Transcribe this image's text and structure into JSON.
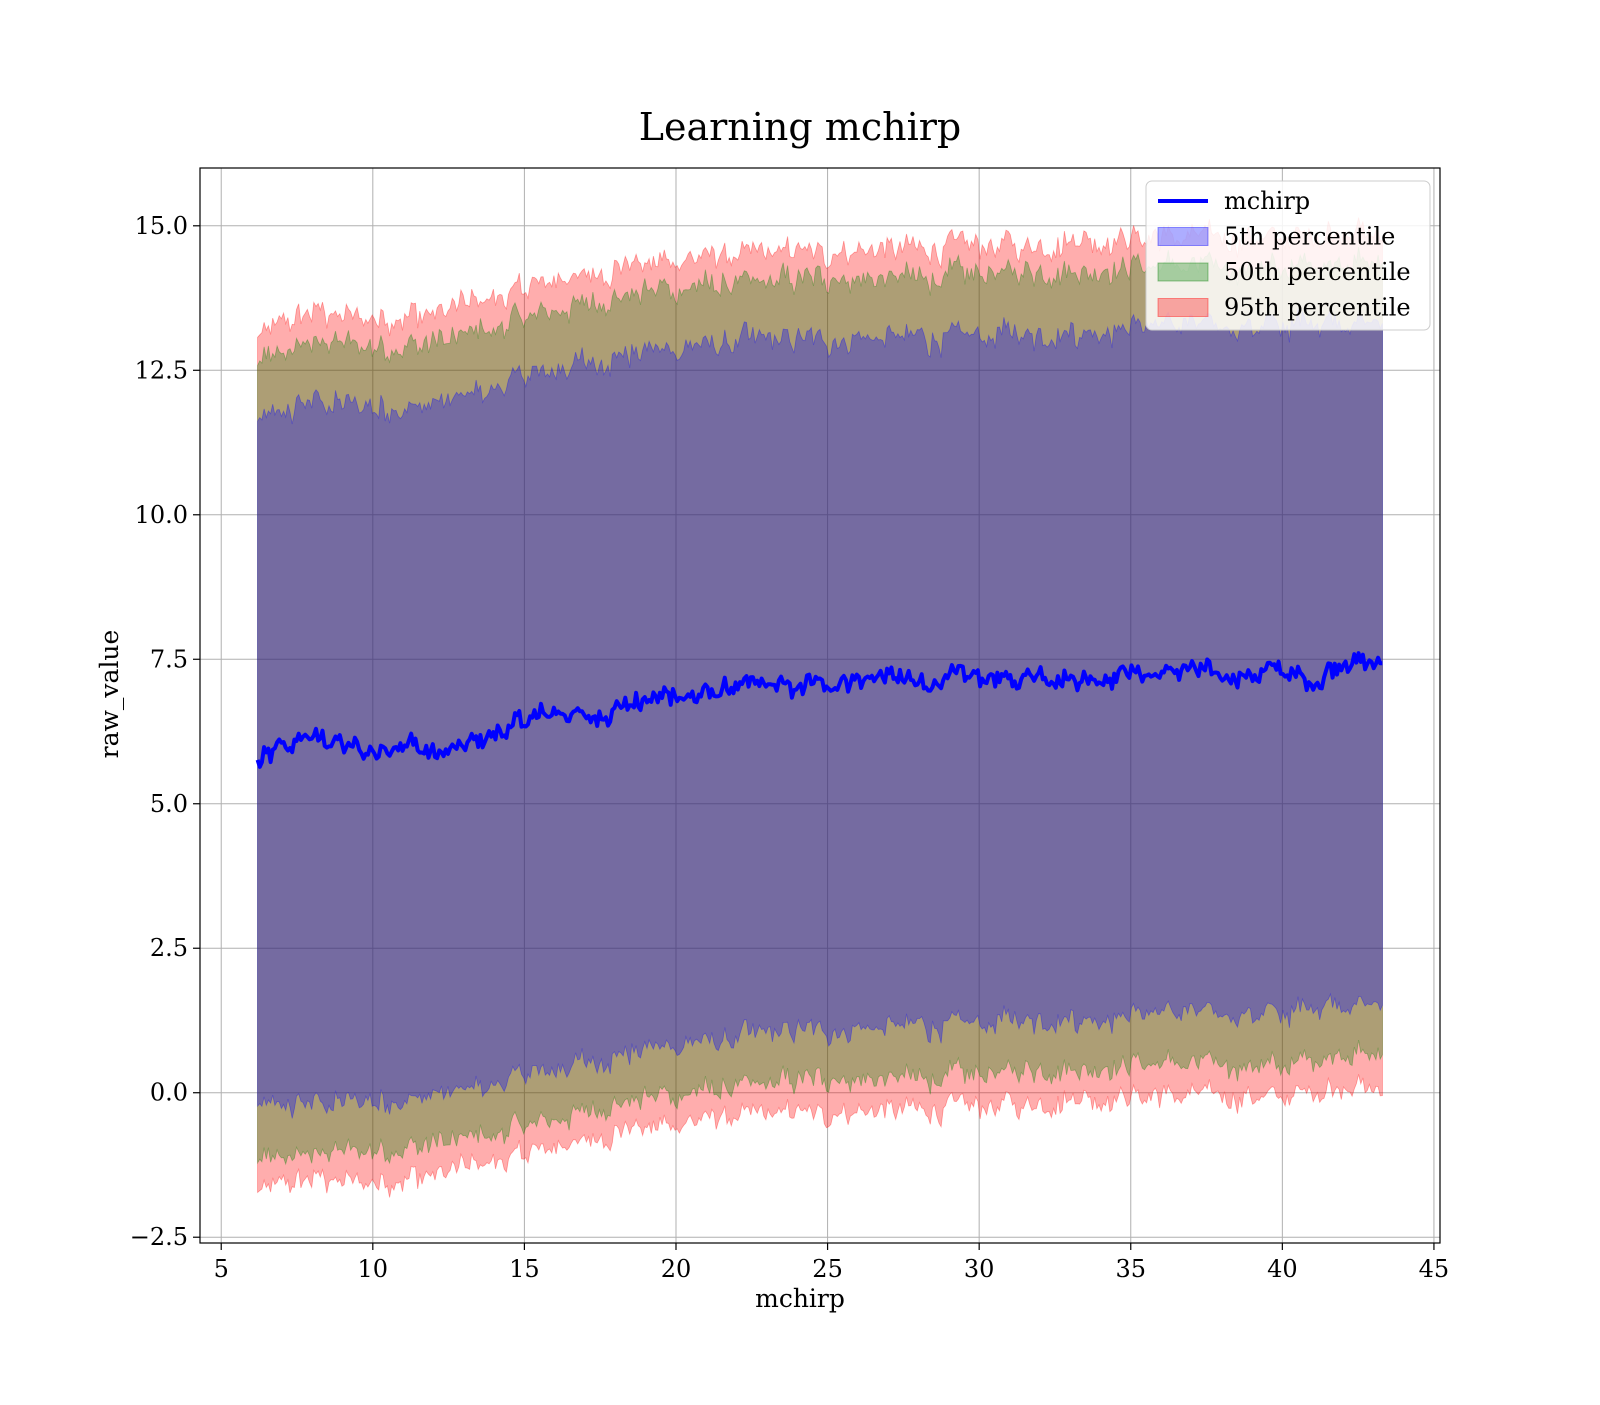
{
  "chart_data": {
    "type": "area",
    "title": "Learning mchirp",
    "xlabel": "mchirp",
    "ylabel": "raw_value",
    "xlim": [
      4.3,
      45.2
    ],
    "ylim": [
      -2.6,
      16.0
    ],
    "x_ticks": [
      "5",
      "10",
      "15",
      "20",
      "25",
      "30",
      "35",
      "40",
      "45"
    ],
    "x_tick_values": [
      5,
      10,
      15,
      20,
      25,
      30,
      35,
      40,
      45
    ],
    "y_ticks": [
      "−2.5",
      "0.0",
      "2.5",
      "5.0",
      "7.5",
      "10.0",
      "12.5",
      "15.0"
    ],
    "y_tick_values": [
      -2.5,
      0.0,
      2.5,
      5.0,
      7.5,
      10.0,
      12.5,
      15.0
    ],
    "grid": true,
    "legend_position": "top-right",
    "x_range": [
      6.2,
      43.3
    ],
    "series": [
      {
        "name": "mchirp",
        "kind": "line",
        "color": "#0000ff",
        "x": [
          6.2,
          7,
          8,
          9,
          10,
          11,
          12,
          13,
          14,
          15,
          16,
          17,
          18,
          19,
          20,
          21,
          22,
          23,
          24,
          25,
          26,
          27,
          28,
          29,
          30,
          31,
          32,
          33,
          34,
          35,
          36,
          37,
          38,
          39,
          40,
          41,
          42,
          43.3
        ],
        "y": [
          5.7,
          5.95,
          6.15,
          6.0,
          5.9,
          6.1,
          5.85,
          5.95,
          6.2,
          6.4,
          6.6,
          6.5,
          6.65,
          6.8,
          6.9,
          6.85,
          7.0,
          7.05,
          7.0,
          7.1,
          7.15,
          7.2,
          7.05,
          7.15,
          7.2,
          7.1,
          7.25,
          7.15,
          7.2,
          7.3,
          7.25,
          7.3,
          7.2,
          7.25,
          7.3,
          7.05,
          7.5,
          7.4
        ]
      },
      {
        "name": "5th percentile",
        "kind": "band",
        "color": "#0000ff",
        "x": [
          6.2,
          8,
          10,
          12,
          14,
          16,
          18,
          20,
          22,
          24,
          26,
          28,
          30,
          32,
          34,
          36,
          38,
          40,
          42,
          43.3
        ],
        "lower": [
          -0.25,
          -0.2,
          -0.15,
          -0.05,
          0.15,
          0.4,
          0.65,
          0.85,
          0.95,
          1.05,
          1.1,
          1.15,
          1.2,
          1.3,
          1.3,
          1.4,
          1.4,
          1.35,
          1.6,
          1.5
        ],
        "upper": [
          11.6,
          11.95,
          11.85,
          11.9,
          12.2,
          12.5,
          12.75,
          12.9,
          13.0,
          13.0,
          13.05,
          13.05,
          13.1,
          13.15,
          13.2,
          13.3,
          13.3,
          13.25,
          13.4,
          13.3
        ]
      },
      {
        "name": "50th percentile",
        "kind": "band",
        "color": "#008000",
        "x": [
          6.2,
          8,
          10,
          12,
          14,
          16,
          18,
          20,
          22,
          24,
          26,
          28,
          30,
          32,
          34,
          36,
          38,
          40,
          42,
          43.3
        ],
        "lower": [
          -1.2,
          -1.05,
          -1.0,
          -0.9,
          -0.7,
          -0.45,
          -0.2,
          0.0,
          0.1,
          0.2,
          0.25,
          0.25,
          0.3,
          0.4,
          0.45,
          0.5,
          0.5,
          0.45,
          0.75,
          0.6
        ],
        "upper": [
          12.6,
          13.0,
          12.9,
          12.95,
          13.25,
          13.55,
          13.75,
          13.95,
          14.0,
          14.05,
          14.1,
          14.1,
          14.15,
          14.2,
          14.25,
          14.3,
          14.3,
          14.25,
          14.45,
          14.3
        ]
      },
      {
        "name": "95th percentile",
        "kind": "band",
        "color": "#ff0000",
        "x": [
          6.2,
          8,
          10,
          12,
          14,
          16,
          18,
          20,
          22,
          24,
          26,
          28,
          30,
          32,
          34,
          36,
          38,
          40,
          42,
          43.3
        ],
        "lower": [
          -1.7,
          -1.5,
          -1.55,
          -1.45,
          -1.2,
          -0.95,
          -0.7,
          -0.5,
          -0.4,
          -0.35,
          -0.3,
          -0.3,
          -0.25,
          -0.15,
          -0.1,
          -0.05,
          -0.05,
          -0.1,
          0.15,
          0.0
        ],
        "upper": [
          13.1,
          13.5,
          13.4,
          13.45,
          13.75,
          14.05,
          14.25,
          14.45,
          14.5,
          14.55,
          14.6,
          14.6,
          14.65,
          14.7,
          14.75,
          14.8,
          14.8,
          14.75,
          14.95,
          14.8
        ]
      }
    ],
    "legend": [
      {
        "label": "mchirp",
        "kind": "line",
        "color": "#0000ff"
      },
      {
        "label": "5th percentile",
        "kind": "patch",
        "color": "#0000ff"
      },
      {
        "label": "50th percentile",
        "kind": "patch",
        "color": "#008000"
      },
      {
        "label": "95th percentile",
        "kind": "patch",
        "color": "#ff0000"
      }
    ]
  }
}
